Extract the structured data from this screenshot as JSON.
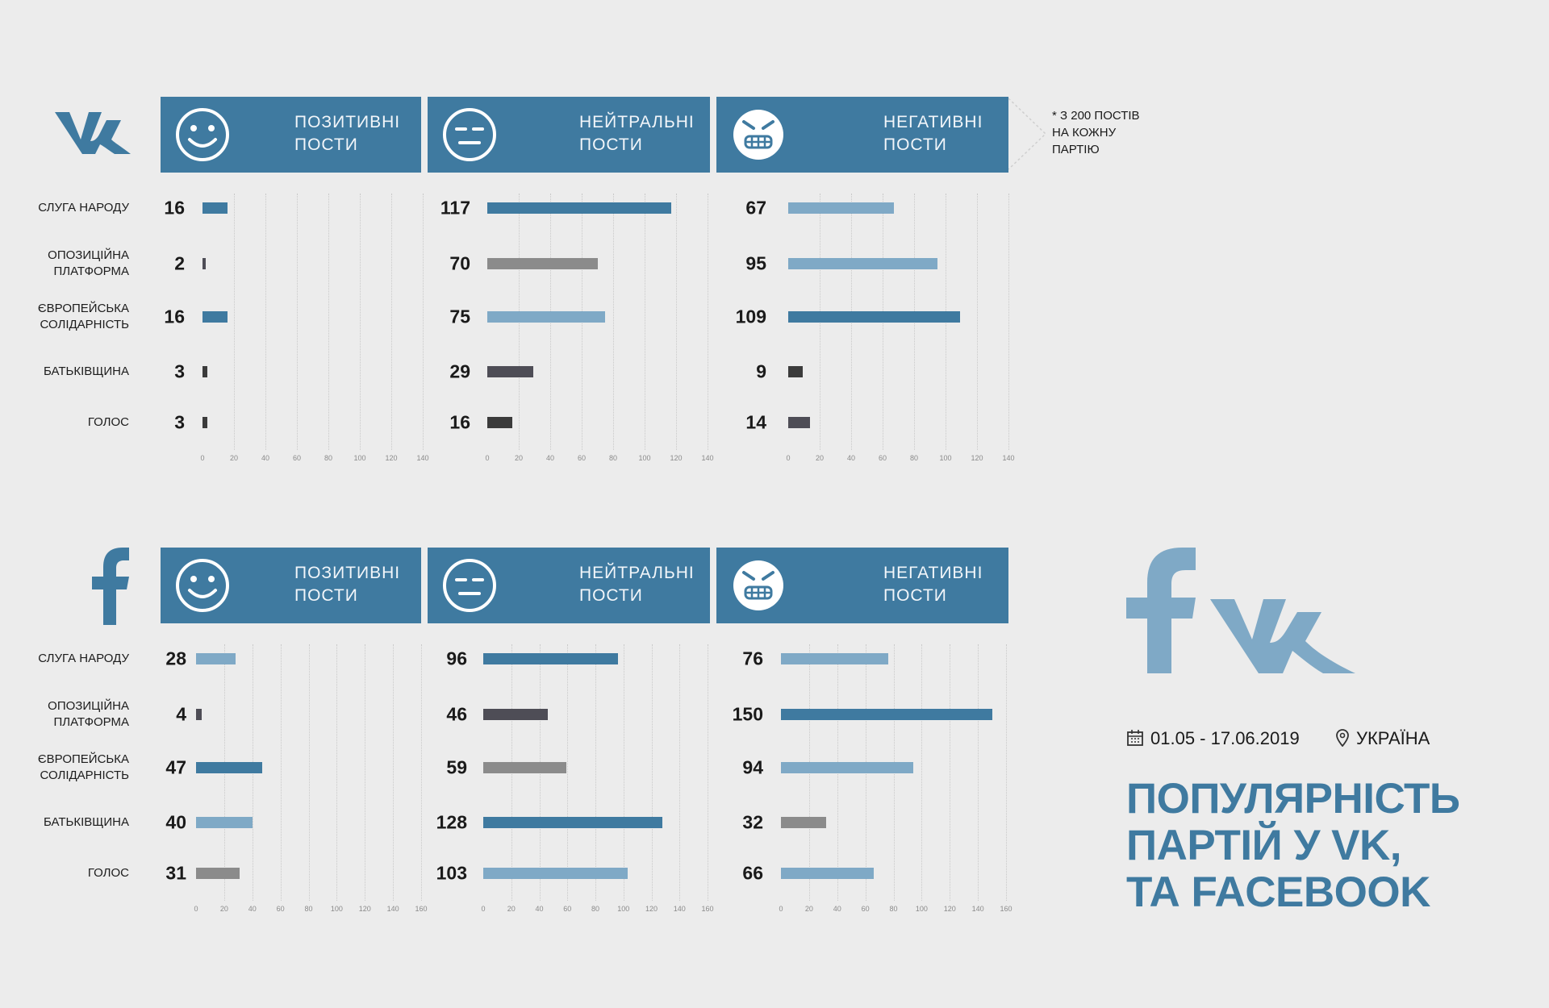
{
  "colors": {
    "dark_blue": "#3f7aa0",
    "light_blue": "#7fa9c6",
    "gray": "#8b8b8b",
    "dark_gray": "#4e4d56",
    "charcoal": "#3b3b3b",
    "background": "#ececec"
  },
  "header_labels": {
    "positive": "ПОЗИТИВНІ\nПОСТИ",
    "neutral": "НЕЙТРАЛЬНІ\nПОСТИ",
    "negative": "НЕГАТИВНІ\nПОСТИ"
  },
  "note": "* З 200 ПОСТІВ\nНА КОЖНУ\nПАРТІЮ",
  "meta": {
    "date": "01.05 - 17.06.2019",
    "place": "УКРАЇНА"
  },
  "title": "ПОПУЛЯРНІСТЬ\nПАРТІЙ У VK,\nТА FACEBOOK",
  "categories": [
    "СЛУГА НАРОДУ",
    "ОПОЗИЦІЙНА\nПЛАТФОРМА",
    "ЄВРОПЕЙСЬКА\nСОЛІДАРНІСТЬ",
    "БАТЬКІВЩИНА",
    "ГОЛОС"
  ],
  "chart_data": [
    {
      "type": "bar",
      "platform": "vk",
      "categories": [
        "СЛУГА НАРОДУ",
        "ОПОЗИЦІЙНА ПЛАТФОРМА",
        "ЄВРОПЕЙСЬКА СОЛІДАРНІСТЬ",
        "БАТЬКІВЩИНА",
        "ГОЛОС"
      ],
      "series": [
        {
          "name": "ПОЗИТИВНІ ПОСТИ",
          "values": [
            16,
            2,
            16,
            3,
            3
          ],
          "colors": [
            "#3f7aa0",
            "#4e4d56",
            "#3f7aa0",
            "#3b3b3b",
            "#3b3b3b"
          ]
        },
        {
          "name": "НЕЙТРАЛЬНІ ПОСТИ",
          "values": [
            117,
            70,
            75,
            29,
            16
          ],
          "colors": [
            "#3f7aa0",
            "#8b8b8b",
            "#7fa9c6",
            "#4e4d56",
            "#3b3b3b"
          ]
        },
        {
          "name": "НЕГАТИВНІ ПОСТИ",
          "values": [
            67,
            95,
            109,
            9,
            14
          ],
          "colors": [
            "#7fa9c6",
            "#7fa9c6",
            "#3f7aa0",
            "#3b3b3b",
            "#4e4d56"
          ]
        }
      ],
      "xlim": [
        0,
        140
      ],
      "ticks": [
        0,
        20,
        40,
        60,
        80,
        100,
        120,
        140
      ]
    },
    {
      "type": "bar",
      "platform": "facebook",
      "categories": [
        "СЛУГА НАРОДУ",
        "ОПОЗИЦІЙНА ПЛАТФОРМА",
        "ЄВРОПЕЙСЬКА СОЛІДАРНІСТЬ",
        "БАТЬКІВЩИНА",
        "ГОЛОС"
      ],
      "series": [
        {
          "name": "ПОЗИТИВНІ ПОСТИ",
          "values": [
            28,
            4,
            47,
            40,
            31
          ],
          "colors": [
            "#7fa9c6",
            "#4e4d56",
            "#3f7aa0",
            "#7fa9c6",
            "#8b8b8b"
          ]
        },
        {
          "name": "НЕЙТРАЛЬНІ ПОСТИ",
          "values": [
            96,
            46,
            59,
            128,
            103
          ],
          "colors": [
            "#3f7aa0",
            "#4e4d56",
            "#8b8b8b",
            "#3f7aa0",
            "#7fa9c6"
          ]
        },
        {
          "name": "НЕГАТИВНІ ПОСТИ",
          "values": [
            76,
            150,
            94,
            32,
            66
          ],
          "colors": [
            "#7fa9c6",
            "#3f7aa0",
            "#7fa9c6",
            "#8b8b8b",
            "#7fa9c6"
          ]
        }
      ],
      "xlim": [
        0,
        160
      ],
      "ticks": [
        0,
        20,
        40,
        60,
        80,
        100,
        120,
        140,
        160
      ]
    }
  ]
}
